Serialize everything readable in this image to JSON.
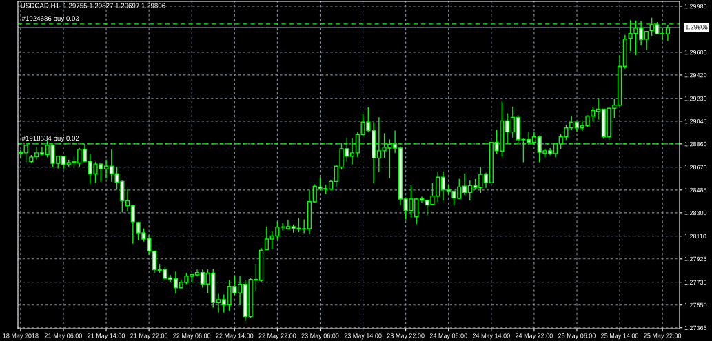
{
  "chart_data": {
    "type": "candlestick",
    "title": "USDCAD,H1  1.29755 1.29827 1.29697 1.29806",
    "categories": [
      "18 May 2018",
      null,
      null,
      null,
      null,
      null,
      null,
      null,
      "21 May 06:00",
      null,
      null,
      null,
      null,
      null,
      null,
      null,
      "21 May 14:00",
      null,
      null,
      null,
      null,
      null,
      null,
      null,
      "21 May 22:00",
      null,
      null,
      null,
      null,
      null,
      null,
      null,
      "22 May 06:00",
      null,
      null,
      null,
      null,
      null,
      null,
      null,
      "22 May 14:00",
      null,
      null,
      null,
      null,
      null,
      null,
      null,
      "22 May 22:00",
      null,
      null,
      null,
      null,
      null,
      null,
      null,
      "23 May 06:00",
      null,
      null,
      null,
      null,
      null,
      null,
      null,
      "23 May 14:00",
      null,
      null,
      null,
      null,
      null,
      null,
      null,
      "23 May 22:00",
      null,
      null,
      null,
      null,
      null,
      null,
      null,
      "24 May 06:00",
      null,
      null,
      null,
      null,
      null,
      null,
      null,
      "24 May 14:00",
      null,
      null,
      null,
      null,
      null,
      null,
      null,
      "24 May 22:00",
      null,
      null,
      null,
      null,
      null,
      null,
      null,
      "25 May 06:00",
      null,
      null,
      null,
      null,
      null,
      null,
      null,
      "25 May 14:00",
      null,
      null,
      null,
      null,
      null,
      null,
      null,
      "25 May 22:00",
      null
    ],
    "series": [
      {
        "color": "#00ff00",
        "ohlc": [
          [
            1.28785,
            1.28811,
            1.28742,
            1.28792
          ],
          [
            1.28787,
            1.28849,
            1.28713,
            1.28849
          ],
          [
            1.28717,
            1.2877,
            1.28704,
            1.28753
          ],
          [
            1.28756,
            1.28835,
            1.28732,
            1.28787
          ],
          [
            1.28787,
            1.28835,
            1.2877,
            1.28776
          ],
          [
            1.28773,
            1.28886,
            1.28751,
            1.28849
          ],
          [
            1.28849,
            1.28855,
            1.28671,
            1.28702
          ],
          [
            1.28702,
            1.28764,
            1.2866,
            1.28759
          ],
          [
            1.28759,
            1.28764,
            1.28649,
            1.28691
          ],
          [
            1.28691,
            1.28732,
            1.28675,
            1.28708
          ],
          [
            1.28708,
            1.28755,
            1.28675,
            1.28715
          ],
          [
            1.28705,
            1.28826,
            1.28675,
            1.28815
          ],
          [
            1.28815,
            1.2886,
            1.28713,
            1.28719
          ],
          [
            1.28719,
            1.28781,
            1.28536,
            1.28617
          ],
          [
            1.28617,
            1.28713,
            1.28544,
            1.28696
          ],
          [
            1.28696,
            1.28702,
            1.28553,
            1.28657
          ],
          [
            1.28657,
            1.28732,
            1.28581,
            1.28679
          ],
          [
            1.28679,
            1.28817,
            1.28553,
            1.28617
          ],
          [
            1.28617,
            1.28675,
            1.28487,
            1.28549
          ],
          [
            1.28555,
            1.28562,
            1.28302,
            1.28397
          ],
          [
            1.28357,
            1.28494,
            1.28312,
            1.28397
          ],
          [
            1.28357,
            1.28364,
            1.28049,
            1.28227
          ],
          [
            1.28221,
            1.28227,
            1.28078,
            1.28137
          ],
          [
            1.28137,
            1.28172,
            1.28066,
            1.28086
          ],
          [
            1.28091,
            1.2812,
            1.27959,
            1.27989
          ],
          [
            1.27989,
            1.27989,
            1.27812,
            1.27837
          ],
          [
            1.27831,
            1.27884,
            1.27812,
            1.27837
          ],
          [
            1.27837,
            1.27861,
            1.27752,
            1.27767
          ],
          [
            1.27771,
            1.27793,
            1.27737,
            1.27758
          ],
          [
            1.27763,
            1.27822,
            1.27642,
            1.2769
          ],
          [
            1.2769,
            1.27758,
            1.27686,
            1.27735
          ],
          [
            1.27733,
            1.27809,
            1.2772,
            1.27786
          ],
          [
            1.27784,
            1.27797,
            1.27733,
            1.27797
          ],
          [
            1.27795,
            1.27839,
            1.27784,
            1.27814
          ],
          [
            1.27814,
            1.27839,
            1.27691,
            1.27721
          ],
          [
            1.27721,
            1.27839,
            1.27646,
            1.27809
          ],
          [
            1.27809,
            1.27842,
            1.27529,
            1.27569
          ],
          [
            1.27569,
            1.27641,
            1.27488,
            1.27594
          ],
          [
            1.27594,
            1.27635,
            1.27488,
            1.27552
          ],
          [
            1.27552,
            1.27752,
            1.27501,
            1.27701
          ],
          [
            1.27701,
            1.27793,
            1.27633,
            1.27648
          ],
          [
            1.27648,
            1.27788,
            1.27552,
            1.27718
          ],
          [
            1.27718,
            1.27752,
            1.2742,
            1.27456
          ],
          [
            1.27456,
            1.27771,
            1.27444,
            1.27758
          ],
          [
            1.27752,
            1.27884,
            1.27663,
            1.27758
          ],
          [
            1.2775,
            1.28012,
            1.27738,
            1.27995
          ],
          [
            1.28001,
            1.28189,
            1.27997,
            1.28086
          ],
          [
            1.28086,
            1.28148,
            1.28004,
            1.28112
          ],
          [
            1.28112,
            1.28229,
            1.28086,
            1.28182
          ],
          [
            1.28182,
            1.28217,
            1.28157,
            1.28185
          ],
          [
            1.2817,
            1.28242,
            1.2817,
            1.28187
          ],
          [
            1.28187,
            1.28204,
            1.28138,
            1.28174
          ],
          [
            1.28168,
            1.28257,
            1.28142,
            1.28174
          ],
          [
            1.28168,
            1.28246,
            1.28134,
            1.2817
          ],
          [
            1.2817,
            1.28487,
            1.28125,
            1.28391
          ],
          [
            1.28389,
            1.28532,
            1.28383,
            1.28515
          ],
          [
            1.2851,
            1.28589,
            1.28483,
            1.28498
          ],
          [
            1.28493,
            1.28528,
            1.28453,
            1.28496
          ],
          [
            1.28493,
            1.28568,
            1.28487,
            1.28555
          ],
          [
            1.28555,
            1.28687,
            1.28513,
            1.28679
          ],
          [
            1.28671,
            1.28864,
            1.28651,
            1.28821
          ],
          [
            1.28821,
            1.28911,
            1.28717,
            1.28759
          ],
          [
            1.28759,
            1.28906,
            1.28694,
            1.28787
          ],
          [
            1.28787,
            1.28953,
            1.28751,
            1.28936
          ],
          [
            1.28934,
            1.291,
            1.2892,
            1.29037
          ],
          [
            1.29037,
            1.29156,
            1.28954,
            1.28968
          ],
          [
            1.28968,
            1.29037,
            1.2854,
            1.28745
          ],
          [
            1.28745,
            1.29077,
            1.28632,
            1.28804
          ],
          [
            1.28804,
            1.28947,
            1.28747,
            1.28832
          ],
          [
            1.28826,
            1.28896,
            1.28581,
            1.28858
          ],
          [
            1.28858,
            1.28968,
            1.28785,
            1.28826
          ],
          [
            1.28826,
            1.28839,
            1.2836,
            1.28411
          ],
          [
            1.28411,
            1.28425,
            1.28246,
            1.28317
          ],
          [
            1.28317,
            1.28523,
            1.28264,
            1.28411
          ],
          [
            1.28267,
            1.28419,
            1.28208,
            1.28411
          ],
          [
            1.28415,
            1.28431,
            1.28383,
            1.28402
          ],
          [
            1.28402,
            1.28402,
            1.2828,
            1.28363
          ],
          [
            1.28368,
            1.2854,
            1.28368,
            1.28436
          ],
          [
            1.28434,
            1.28632,
            1.28387,
            1.28589
          ],
          [
            1.28589,
            1.28636,
            1.284,
            1.28487
          ],
          [
            1.28487,
            1.28528,
            1.28449,
            1.28476
          ],
          [
            1.28476,
            1.28476,
            1.2836,
            1.28419
          ],
          [
            1.28417,
            1.28575,
            1.28411,
            1.2851
          ],
          [
            1.28517,
            1.28619,
            1.28445,
            1.28465
          ],
          [
            1.28465,
            1.28562,
            1.284,
            1.28521
          ],
          [
            1.28521,
            1.28574,
            1.28487,
            1.28504
          ],
          [
            1.28504,
            1.2867,
            1.28462,
            1.28612
          ],
          [
            1.28612,
            1.28625,
            1.28502,
            1.28544
          ],
          [
            1.28544,
            1.28872,
            1.28544,
            1.28872
          ],
          [
            1.28872,
            1.28975,
            1.28779,
            1.28804
          ],
          [
            1.28802,
            1.29207,
            1.28756,
            1.29047
          ],
          [
            1.29047,
            1.29109,
            1.2886,
            1.28957
          ],
          [
            1.28957,
            1.29162,
            1.28911,
            1.29075
          ],
          [
            1.29075,
            1.29094,
            1.2886,
            1.28894
          ],
          [
            1.28894,
            1.28902,
            1.28711,
            1.28896
          ],
          [
            1.28894,
            1.28958,
            1.28852,
            1.28872
          ],
          [
            1.28872,
            1.28958,
            1.28852,
            1.28917
          ],
          [
            1.28917,
            1.28928,
            1.28711,
            1.28792
          ],
          [
            1.28785,
            1.28821,
            1.28751,
            1.28804
          ],
          [
            1.28804,
            1.28826,
            1.2877,
            1.28781
          ],
          [
            1.28781,
            1.2886,
            1.28751,
            1.2886
          ],
          [
            1.2886,
            1.2894,
            1.28819,
            1.28917
          ],
          [
            1.28917,
            1.29015,
            1.28892,
            1.2899
          ],
          [
            1.2899,
            1.29087,
            1.28973,
            1.29036
          ],
          [
            1.29036,
            1.29043,
            1.28957,
            1.2899
          ],
          [
            1.2899,
            1.29053,
            1.28966,
            1.29007
          ],
          [
            1.29007,
            1.29092,
            1.28999,
            1.29087
          ],
          [
            1.29087,
            1.29162,
            1.29047,
            1.29132
          ],
          [
            1.29124,
            1.2923,
            1.29058,
            1.29143
          ],
          [
            1.29143,
            1.29143,
            1.28903,
            1.28917
          ],
          [
            1.28917,
            1.29154,
            1.28892,
            1.29149
          ],
          [
            1.29149,
            1.29226,
            1.2907,
            1.29175
          ],
          [
            1.29175,
            1.2958,
            1.29166,
            1.29491
          ],
          [
            1.29491,
            1.29746,
            1.29473,
            1.29712
          ],
          [
            1.2972,
            1.29867,
            1.29614,
            1.29757
          ],
          [
            1.29757,
            1.29863,
            1.2958,
            1.29802
          ],
          [
            1.29802,
            1.29859,
            1.29661,
            1.29709
          ],
          [
            1.29712,
            1.29774,
            1.29624,
            1.29774
          ],
          [
            1.29782,
            1.29886,
            1.2974,
            1.29829
          ],
          [
            1.29829,
            1.2985,
            1.29754,
            1.29754
          ],
          [
            1.29754,
            1.29806,
            1.29703,
            1.29757
          ],
          [
            1.29755,
            1.29827,
            1.29697,
            1.29806
          ]
        ]
      }
    ],
    "ylim": [
      1.27358,
      1.30019
    ],
    "yticks": [
      {
        "value": 1.2998,
        "label": "1.29980"
      },
      {
        "value": 1.29605,
        "label": "1.29605"
      },
      {
        "value": 1.2942,
        "label": "1.29420"
      },
      {
        "value": 1.2923,
        "label": "1.29230"
      },
      {
        "value": 1.29045,
        "label": "1.29045"
      },
      {
        "value": 1.2886,
        "label": "1.28860"
      },
      {
        "value": 1.2867,
        "label": "1.28670"
      },
      {
        "value": 1.28485,
        "label": "1.28485"
      },
      {
        "value": 1.283,
        "label": "1.28300"
      },
      {
        "value": 1.2811,
        "label": "1.28110"
      },
      {
        "value": 1.27925,
        "label": "1.27925"
      },
      {
        "value": 1.27735,
        "label": "1.27735"
      },
      {
        "value": 1.2755,
        "label": "1.27550"
      },
      {
        "value": 1.27365,
        "label": "1.27365"
      }
    ],
    "ref_lines": [
      {
        "axis": "y",
        "value": 1.29835,
        "label": "#1924686 buy 0.03",
        "color": "#00ff00",
        "line_style": "dashed"
      },
      {
        "axis": "y",
        "value": 1.2886,
        "label": "#1918534 buy 0.02",
        "color": "#00ff00",
        "line_style": "dashed"
      },
      {
        "axis": "y",
        "value": 1.29806,
        "label": "1.29806",
        "color": "#a8b4c0",
        "line_style": "solid"
      }
    ],
    "grid": true
  }
}
